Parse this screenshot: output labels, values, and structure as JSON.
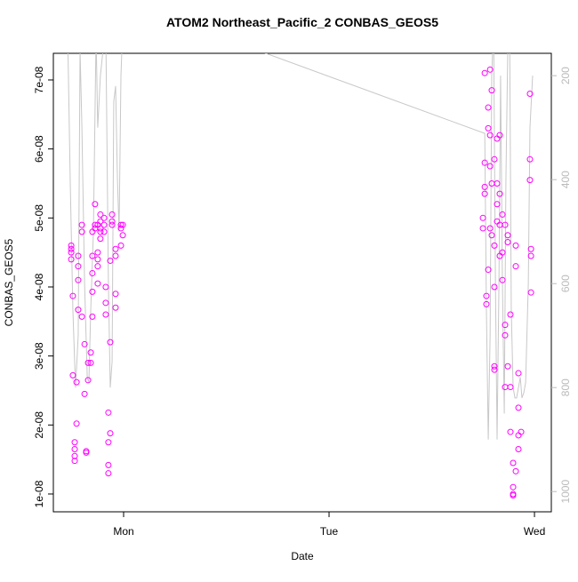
{
  "chart_data": {
    "type": "scatter",
    "title": "ATOM2 Northeast_Pacific_2 CONBAS_GEOS5",
    "xlabel": "Date",
    "ylabel": "CONBAS_GEOS5",
    "xlim": [
      -0.342,
      2.082
    ],
    "xticks": [
      {
        "value": 0,
        "label": "Mon"
      },
      {
        "value": 1,
        "label": "Tue"
      },
      {
        "value": 2,
        "label": "Wed"
      }
    ],
    "ylim": [
      7.42e-09,
      7.386e-08
    ],
    "yticks": [
      {
        "value": 1e-08,
        "label": "1e-08"
      },
      {
        "value": 2e-08,
        "label": "2e-08"
      },
      {
        "value": 3e-08,
        "label": "3e-08"
      },
      {
        "value": 4e-08,
        "label": "4e-08"
      },
      {
        "value": 5e-08,
        "label": "5e-08"
      },
      {
        "value": 6e-08,
        "label": "6e-08"
      },
      {
        "value": 7e-08,
        "label": "7e-08"
      }
    ],
    "y2lim": [
      1039,
      157
    ],
    "y2ticks": [
      200,
      400,
      600,
      800,
      1000
    ],
    "series": [
      {
        "type": "line",
        "axis": "y2",
        "color": "#c8c8c8",
        "x": [
          -0.273,
          -0.26,
          -0.247,
          -0.234,
          -0.221,
          -0.212,
          -0.203,
          -0.19,
          -0.177,
          -0.169,
          -0.16,
          -0.147,
          -0.134,
          -0.126,
          -0.113,
          -0.1,
          -0.087,
          -0.074,
          -0.065,
          -0.056,
          -0.048,
          -0.039,
          -0.03,
          -0.022,
          -0.013,
          0,
          1.758,
          1.766,
          1.775,
          1.784,
          1.792,
          1.801,
          1.81,
          1.818,
          1.827,
          1.835,
          1.844,
          1.853,
          1.861,
          1.87,
          1.879,
          1.887,
          1.896,
          1.905,
          1.913,
          1.922,
          1.931,
          1.939,
          1.948,
          1.957,
          1.97,
          1.978,
          1.991
        ],
        "values": [
          100,
          400,
          650,
          800,
          700,
          150,
          300,
          600,
          780,
          790,
          650,
          500,
          120,
          300,
          200,
          150,
          100,
          600,
          800,
          750,
          250,
          220,
          400,
          500,
          200,
          57,
          311,
          650,
          900,
          700,
          200,
          100,
          600,
          900,
          600,
          200,
          600,
          850,
          400,
          150,
          100,
          650,
          800,
          820,
          820,
          800,
          780,
          820,
          810,
          790,
          600,
          300,
          200
        ]
      },
      {
        "type": "scatter",
        "color": "#ff00ff",
        "x": [
          -0.255,
          -0.255,
          -0.255,
          -0.255,
          -0.247,
          -0.247,
          -0.238,
          -0.238,
          -0.238,
          -0.238,
          -0.229,
          -0.229,
          -0.221,
          -0.221,
          -0.221,
          -0.221,
          -0.203,
          -0.203,
          -0.203,
          -0.19,
          -0.19,
          -0.182,
          -0.182,
          -0.173,
          -0.173,
          -0.16,
          -0.16,
          -0.152,
          -0.152,
          -0.152,
          -0.152,
          -0.152,
          -0.139,
          -0.139,
          -0.139,
          -0.126,
          -0.126,
          -0.126,
          -0.126,
          -0.126,
          -0.113,
          -0.113,
          -0.113,
          -0.113,
          -0.113,
          -0.095,
          -0.095,
          -0.095,
          -0.087,
          -0.087,
          -0.087,
          -0.074,
          -0.074,
          -0.074,
          -0.074,
          -0.065,
          -0.065,
          -0.065,
          -0.056,
          -0.056,
          -0.056,
          -0.039,
          -0.039,
          -0.039,
          -0.039,
          -0.013,
          -0.013,
          -0.013,
          -0.004,
          -0.004,
          1.749,
          1.749,
          1.758,
          1.758,
          1.758,
          1.758,
          1.766,
          1.766,
          1.775,
          1.775,
          1.775,
          1.784,
          1.784,
          1.784,
          1.784,
          1.792,
          1.792,
          1.792,
          1.805,
          1.805,
          1.805,
          1.805,
          1.805,
          1.818,
          1.818,
          1.818,
          1.818,
          1.831,
          1.831,
          1.831,
          1.831,
          1.844,
          1.844,
          1.844,
          1.857,
          1.857,
          1.857,
          1.857,
          1.87,
          1.87,
          1.87,
          1.883,
          1.883,
          1.883,
          1.896,
          1.896,
          1.896,
          1.896,
          1.909,
          1.909,
          1.909,
          1.922,
          1.922,
          1.922,
          1.922,
          1.935,
          1.978,
          1.978,
          1.978,
          1.983,
          1.983,
          1.983
        ],
        "values": [
          4.6e-08,
          4.55e-08,
          4.5e-08,
          4.4e-08,
          3.87e-08,
          2.72e-08,
          1.75e-08,
          1.65e-08,
          1.48e-08,
          1.55e-08,
          2.62e-08,
          2.02e-08,
          4.45e-08,
          4.3e-08,
          4.1e-08,
          3.67e-08,
          4.9e-08,
          4.8e-08,
          3.57e-08,
          2.45e-08,
          3.17e-08,
          1.6e-08,
          1.62e-08,
          2.9e-08,
          2.65e-08,
          3.05e-08,
          2.9e-08,
          4.8e-08,
          4.45e-08,
          4.2e-08,
          3.93e-08,
          3.57e-08,
          5.2e-08,
          4.9e-08,
          4.85e-08,
          4.9e-08,
          4.5e-08,
          4.4e-08,
          4.05e-08,
          4.3e-08,
          5.05e-08,
          4.85e-08,
          4.95e-08,
          4.8e-08,
          4.7e-08,
          5e-08,
          4.9e-08,
          4.8e-08,
          4e-08,
          3.77e-08,
          3.6e-08,
          2.18e-08,
          1.75e-08,
          1.42e-08,
          1.3e-08,
          3.2e-08,
          1.88e-08,
          4.38e-08,
          5.05e-08,
          4.95e-08,
          4.9e-08,
          4.55e-08,
          4.45e-08,
          3.9e-08,
          3.7e-08,
          4.9e-08,
          4.85e-08,
          4.6e-08,
          4.9e-08,
          4.75e-08,
          4.85e-08,
          5e-08,
          5.45e-08,
          5.35e-08,
          5.8e-08,
          7.1e-08,
          3.87e-08,
          3.75e-08,
          4.25e-08,
          6.6e-08,
          6.3e-08,
          7.15e-08,
          6.2e-08,
          5.75e-08,
          4.85e-08,
          4.75e-08,
          5.5e-08,
          6.85e-08,
          4.6e-08,
          4e-08,
          5.85e-08,
          2.85e-08,
          2.8e-08,
          5.2e-08,
          6.15e-08,
          4.95e-08,
          5.5e-08,
          4.9e-08,
          4.45e-08,
          5.35e-08,
          6.2e-08,
          4.1e-08,
          4.5e-08,
          5.05e-08,
          4.9e-08,
          3.45e-08,
          3.3e-08,
          2.55e-08,
          2.85e-08,
          4.75e-08,
          4.65e-08,
          3.6e-08,
          2.55e-08,
          1.9e-08,
          1.45e-08,
          1.1e-08,
          9.8e-09,
          1e-08,
          4.6e-08,
          4.3e-08,
          1.33e-08,
          1.85e-08,
          1.65e-08,
          2.75e-08,
          2.25e-08,
          1.9e-08,
          6.8e-08,
          5.85e-08,
          5.55e-08,
          4.55e-08,
          4.45e-08,
          3.92e-08
        ]
      }
    ]
  }
}
